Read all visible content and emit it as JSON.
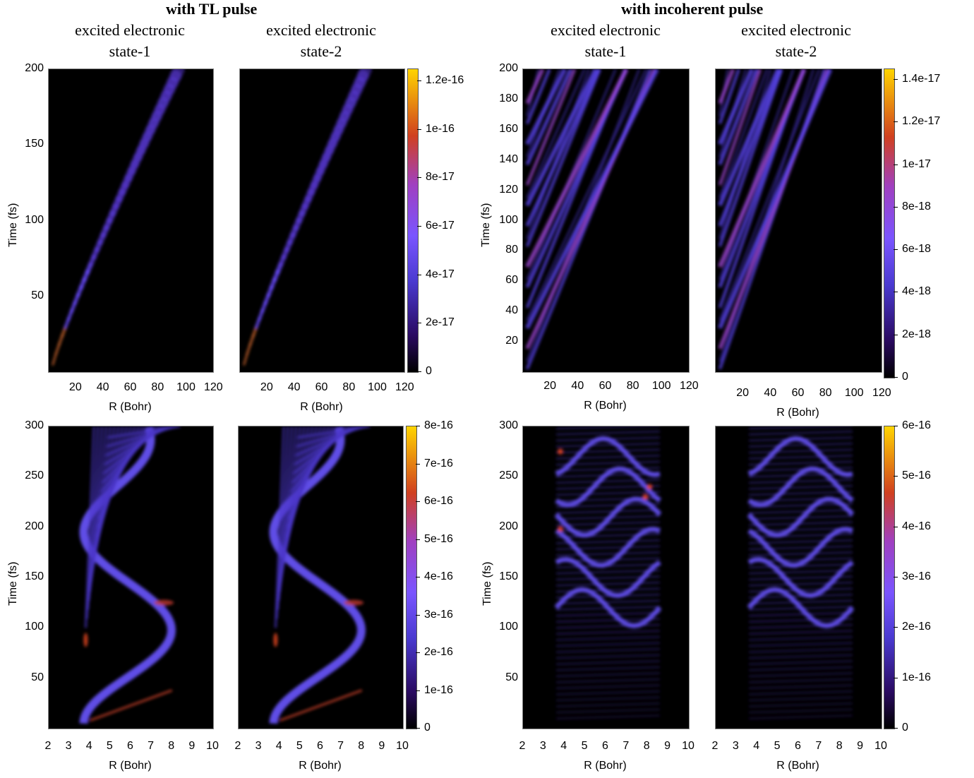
{
  "group_titles": {
    "left": "with TL pulse",
    "right": "with incoherent pulse"
  },
  "subtitles": {
    "s1": [
      "excited electronic",
      "state-1"
    ],
    "s2": [
      "excited electronic",
      "state-2"
    ]
  },
  "colors": {
    "background": "#000000",
    "low": "#1a0040",
    "mid": "#6040ff",
    "high": "#ffd400",
    "peak": "#d04020"
  },
  "chart_data": [
    {
      "type": "heatmap",
      "id": "tl-top-s1",
      "xlabel": "R (Bohr)",
      "ylabel": "Time (fs)",
      "xlim": [
        0,
        120
      ],
      "ylim": [
        0,
        200
      ],
      "xticks": [
        "20",
        "40",
        "60",
        "80",
        "100",
        "120"
      ],
      "yticks": [
        "50",
        "100",
        "150",
        "200"
      ],
      "features": [
        {
          "from": [
            3,
            5
          ],
          "to": [
            95,
            200
          ],
          "kind": "dissociative-branch"
        }
      ]
    },
    {
      "type": "heatmap",
      "id": "tl-top-s2",
      "xlabel": "R (Bohr)",
      "ylabel": "",
      "xlim": [
        0,
        120
      ],
      "ylim": [
        0,
        200
      ],
      "xticks": [
        "20",
        "40",
        "60",
        "80",
        "100",
        "120"
      ],
      "yticks": [],
      "colorbar": [
        "0",
        "2e-17",
        "4e-17",
        "6e-17",
        "8e-17",
        "1e-16",
        "1.2e-16"
      ],
      "colorbar_range": [
        0,
        1.25e-16
      ],
      "features": [
        {
          "from": [
            3,
            5
          ],
          "to": [
            92,
            200
          ],
          "kind": "dissociative-branch"
        }
      ]
    },
    {
      "type": "heatmap",
      "id": "inc-top-s1",
      "xlabel": "R (Bohr)",
      "ylabel": "Time (fs)",
      "xlim": [
        0,
        120
      ],
      "ylim": [
        0,
        200
      ],
      "xticks": [
        "20",
        "40",
        "60",
        "80",
        "100",
        "120"
      ],
      "yticks": [
        "20",
        "40",
        "60",
        "80",
        "100",
        "120",
        "140",
        "160",
        "180",
        "200"
      ],
      "features": [
        {
          "kind": "multiple-dissociative-branches",
          "count": 14,
          "start_times": [
            2,
            200
          ]
        }
      ]
    },
    {
      "type": "heatmap",
      "id": "inc-top-s2",
      "xlabel": "R (Bohr)",
      "ylabel": "",
      "xlim": [
        0,
        120
      ],
      "ylim": [
        0,
        200
      ],
      "xticks": [
        "20",
        "40",
        "60",
        "80",
        "100",
        "120"
      ],
      "yticks": [],
      "colorbar": [
        "0",
        "2e-18",
        "4e-18",
        "6e-18",
        "8e-18",
        "1e-17",
        "1.2e-17",
        "1.4e-17"
      ],
      "colorbar_range": [
        0,
        1.45e-17
      ],
      "features": [
        {
          "kind": "multiple-dissociative-branches",
          "count": 14,
          "start_times": [
            2,
            200
          ]
        }
      ]
    },
    {
      "type": "heatmap",
      "id": "tl-bot-s1",
      "xlabel": "R (Bohr)",
      "ylabel": "Time (fs)",
      "xlim": [
        2,
        10
      ],
      "ylim": [
        0,
        300
      ],
      "xticks": [
        "2",
        "3",
        "4",
        "5",
        "6",
        "7",
        "8",
        "9",
        "10"
      ],
      "yticks": [
        "50",
        "100",
        "150",
        "200",
        "250",
        "300"
      ],
      "features": [
        {
          "kind": "bound-oscillation",
          "turning_points_R": [
            3.7,
            8.5
          ]
        }
      ]
    },
    {
      "type": "heatmap",
      "id": "tl-bot-s2",
      "xlabel": "R (Bohr)",
      "ylabel": "",
      "xlim": [
        2,
        10
      ],
      "ylim": [
        0,
        300
      ],
      "xticks": [
        "2",
        "3",
        "4",
        "5",
        "6",
        "7",
        "8",
        "9",
        "10"
      ],
      "yticks": [],
      "colorbar": [
        "0",
        "1e-16",
        "2e-16",
        "3e-16",
        "4e-16",
        "5e-16",
        "6e-16",
        "7e-16",
        "8e-16"
      ],
      "colorbar_range": [
        0,
        8e-16
      ],
      "features": [
        {
          "kind": "bound-oscillation",
          "turning_points_R": [
            3.7,
            8.5
          ]
        }
      ]
    },
    {
      "type": "heatmap",
      "id": "inc-bot-s1",
      "xlabel": "R (Bohr)",
      "ylabel": "Time (fs)",
      "xlim": [
        2,
        10
      ],
      "ylim": [
        0,
        300
      ],
      "xticks": [
        "2",
        "3",
        "4",
        "5",
        "6",
        "7",
        "8",
        "9",
        "10"
      ],
      "yticks": [
        "50",
        "100",
        "150",
        "200",
        "250",
        "300"
      ],
      "features": [
        {
          "kind": "incoherent-bound-pattern",
          "R_range": [
            3.6,
            8.6
          ]
        }
      ]
    },
    {
      "type": "heatmap",
      "id": "inc-bot-s2",
      "xlabel": "R (Bohr)",
      "ylabel": "",
      "xlim": [
        2,
        10
      ],
      "ylim": [
        0,
        300
      ],
      "xticks": [
        "2",
        "3",
        "4",
        "5",
        "6",
        "7",
        "8",
        "9",
        "10"
      ],
      "yticks": [],
      "colorbar": [
        "0",
        "1e-16",
        "2e-16",
        "3e-16",
        "4e-16",
        "5e-16",
        "6e-16"
      ],
      "colorbar_range": [
        0,
        6e-16
      ],
      "features": [
        {
          "kind": "incoherent-bound-pattern",
          "R_range": [
            3.6,
            8.6
          ]
        }
      ]
    }
  ]
}
